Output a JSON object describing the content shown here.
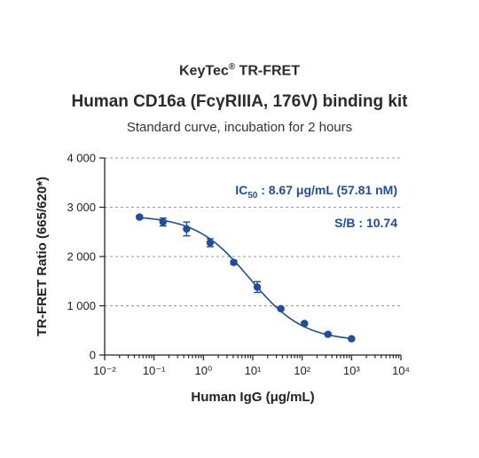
{
  "header": {
    "brand": "KeyTec",
    "brand_mark": "®",
    "brand_suffix": " TR-FRET",
    "title": "Human CD16a (FcγRIIIA, 176V) binding kit",
    "subtitle": "Standard curve,  incubation for 2 hours"
  },
  "annotations": {
    "ic50_prefix": "IC",
    "ic50_sub": "50",
    "ic50_value": " : 8.67 μg/mL (57.81 nM)",
    "sb": "S/B : 10.74"
  },
  "chart_data": {
    "type": "scatter",
    "x_scale": "log",
    "xlabel": "Human IgG  (μg/mL)",
    "ylabel": "TR-FRET Ratio (665/620*)",
    "xlim": [
      0.01,
      10000
    ],
    "ylim": [
      0,
      4000
    ],
    "x_ticks": [
      "10⁻²",
      "10⁻¹",
      "10⁰",
      "10¹",
      "10²",
      "10³",
      "10⁴"
    ],
    "y_ticks": [
      "0",
      "1 000",
      "2 000",
      "3 000",
      "4 000"
    ],
    "y_tick_values": [
      0,
      1000,
      2000,
      3000,
      4000
    ],
    "x_tick_values": [
      0.01,
      0.1,
      1,
      10,
      100,
      1000,
      10000
    ],
    "grid": "horizontal dashed",
    "series": [
      {
        "color": "#1f4e9a",
        "x": [
          0.0508,
          0.152,
          0.457,
          1.37,
          4.12,
          12.3,
          37.0,
          111,
          333,
          1000
        ],
        "y": [
          2800,
          2700,
          2560,
          2280,
          1880,
          1380,
          940,
          640,
          420,
          330
        ],
        "err": [
          30,
          80,
          140,
          80,
          40,
          110,
          30,
          30,
          30,
          20
        ]
      }
    ],
    "fit": {
      "model": "4PL",
      "bottom": 280,
      "top": 2830,
      "ic50": 8.67,
      "hill": 0.8
    }
  }
}
